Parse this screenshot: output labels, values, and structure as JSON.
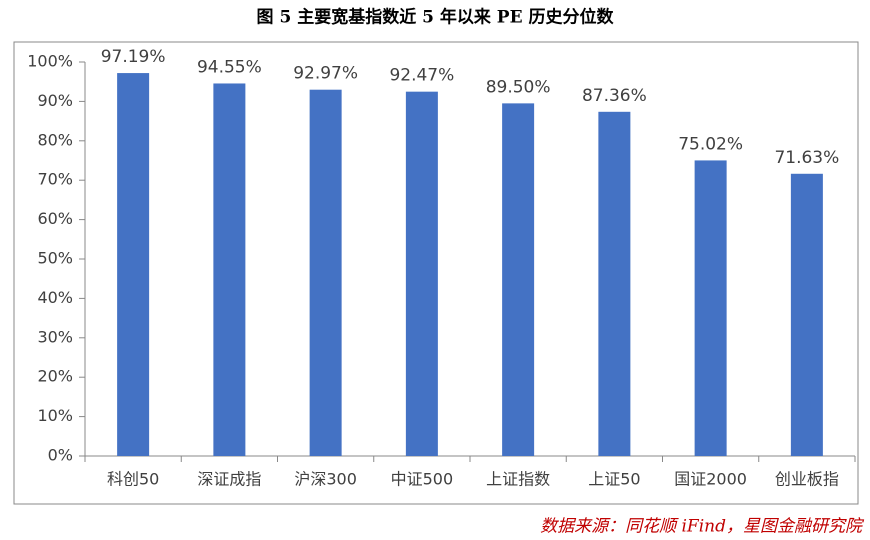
{
  "chart_data": {
    "type": "bar",
    "title": "图 5 主要宽基指数近 5 年以来 PE 历史分位数",
    "source": "数据来源：同花顺 iFind，星图金融研究院",
    "categories": [
      "科创50",
      "深证成指",
      "沪深300",
      "中证500",
      "上证指数",
      "上证50",
      "国证2000",
      "创业板指"
    ],
    "values": [
      97.19,
      94.55,
      92.97,
      92.47,
      89.5,
      87.36,
      75.02,
      71.63
    ],
    "value_labels": [
      "97.19%",
      "94.55%",
      "92.97%",
      "92.47%",
      "89.50%",
      "87.36%",
      "75.02%",
      "71.63%"
    ],
    "color": "#4472c4",
    "ylim": [
      0,
      100
    ],
    "yticks": [
      {
        "value": 0,
        "label": "0%"
      },
      {
        "value": 10,
        "label": "10%"
      },
      {
        "value": 20,
        "label": "20%"
      },
      {
        "value": 30,
        "label": "30%"
      },
      {
        "value": 40,
        "label": "40%"
      },
      {
        "value": 50,
        "label": "50%"
      },
      {
        "value": 60,
        "label": "60%"
      },
      {
        "value": 70,
        "label": "70%"
      },
      {
        "value": 80,
        "label": "80%"
      },
      {
        "value": 90,
        "label": "90%"
      },
      {
        "value": 100,
        "label": "100%"
      }
    ],
    "grid": false
  }
}
